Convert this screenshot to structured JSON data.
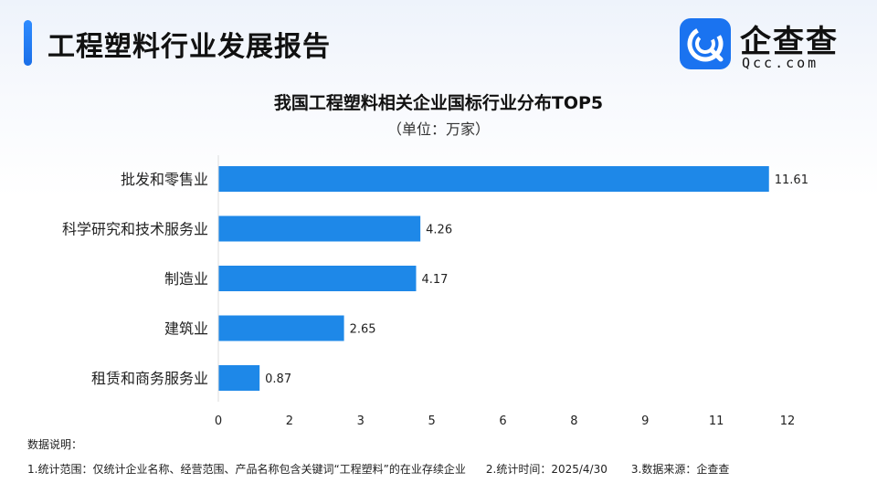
{
  "header": {
    "title": "工程塑料行业发展报告",
    "logo_cn": "企查查",
    "logo_en": "Qcc.com"
  },
  "chart_data": {
    "type": "bar",
    "orientation": "horizontal",
    "title": "我国工程塑料相关企业国标行业分布TOP5",
    "subtitle": "（单位：万家）",
    "categories": [
      "批发和零售业",
      "科学研究和技术服务业",
      "制造业",
      "建筑业",
      "租赁和商务服务业"
    ],
    "values": [
      11.61,
      4.26,
      4.17,
      2.65,
      0.87
    ],
    "value_labels": [
      "11.61",
      "4.26",
      "4.17",
      "2.65",
      "0.87"
    ],
    "x_ticks": [
      "0",
      "2",
      "3",
      "5",
      "6",
      "8",
      "9",
      "11",
      "12"
    ],
    "x_tick_values": [
      0,
      1.5,
      3,
      4.5,
      6,
      7.5,
      9,
      10.5,
      12
    ],
    "xlim": [
      0,
      12
    ],
    "grid": false,
    "bar_color": "#1e88e8"
  },
  "notes": {
    "title": "数据说明：",
    "item1": "1.统计范围：仅统计企业名称、经营范围、产品名称包含关键词“工程塑料”的在业存续企业",
    "item2": "2.统计时间：2025/4/30",
    "item3": "3.数据来源：企查查"
  }
}
